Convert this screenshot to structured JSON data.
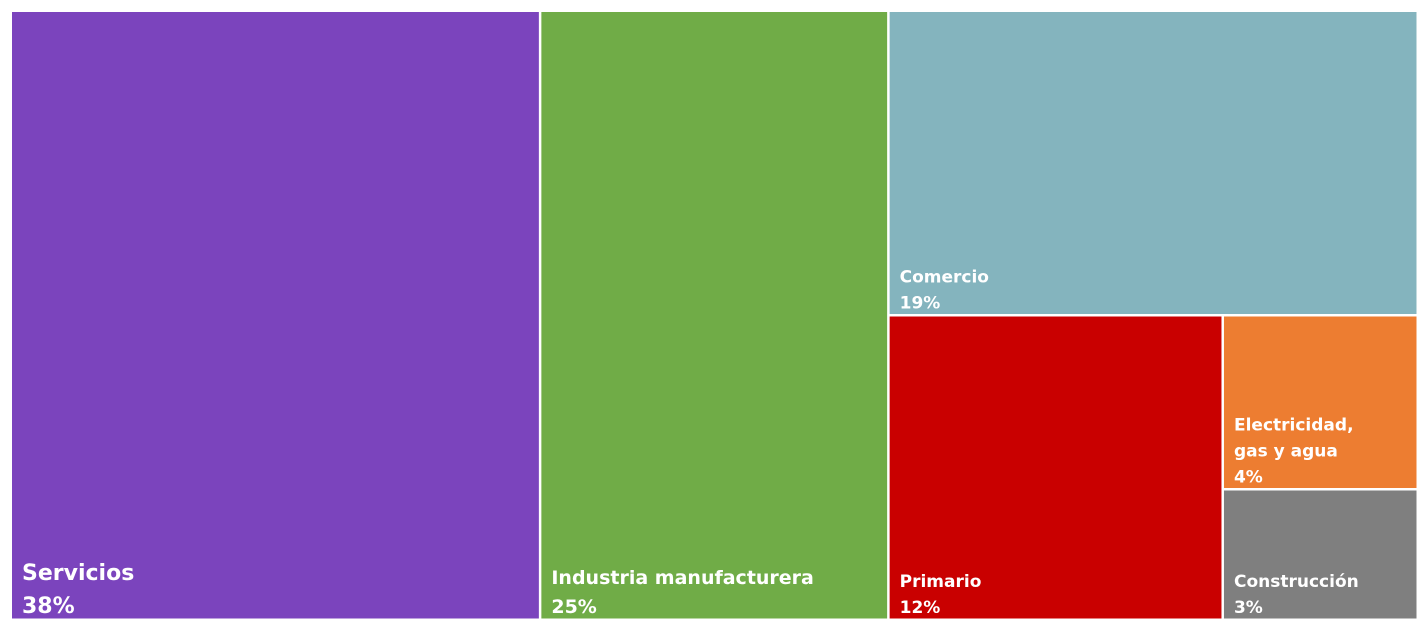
{
  "chart_data": {
    "type": "treemap",
    "title": "",
    "items": [
      {
        "name": "Servicios",
        "value": 38,
        "label": "38%",
        "color": "#7b44bd"
      },
      {
        "name": "Industria manufacturera",
        "value": 25,
        "label": "25%",
        "color": "#70ac47"
      },
      {
        "name": "Comercio",
        "value": 19,
        "label": "19%",
        "color": "#84b4be"
      },
      {
        "name": "Primario",
        "value": 12,
        "label": "12%",
        "color": "#c90000"
      },
      {
        "name": "Electricidad, gas y agua",
        "value": 4,
        "label": "4%",
        "color": "#ed7d31"
      },
      {
        "name": "Construcción",
        "value": 3,
        "label": "3%",
        "color": "#7f7f7f"
      }
    ]
  }
}
